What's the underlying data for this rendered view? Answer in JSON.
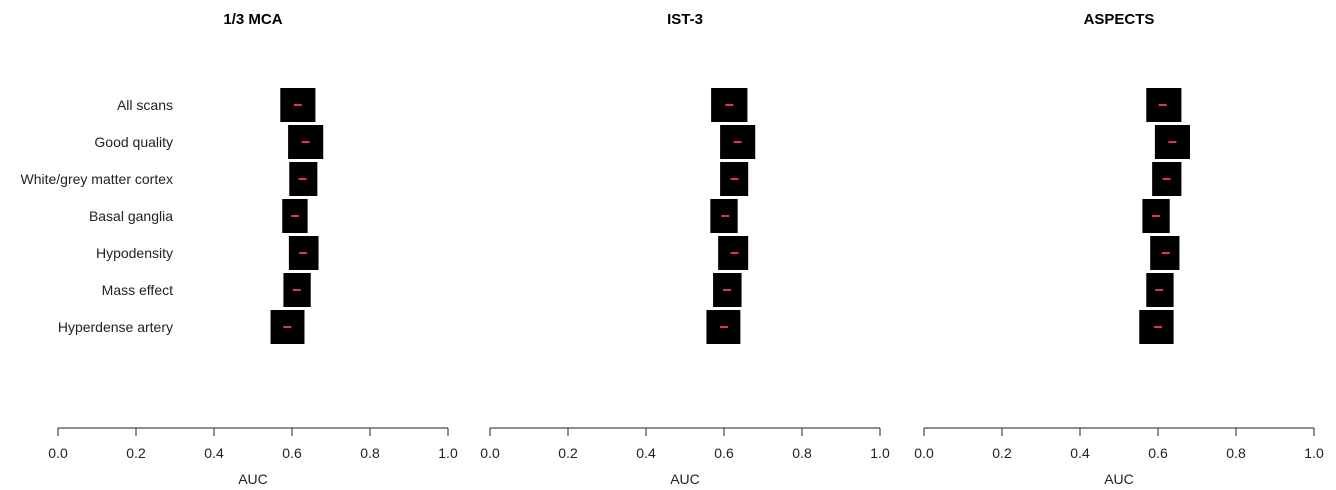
{
  "chart_data": [
    {
      "type": "forest",
      "title": "1/3 MCA",
      "xlabel": "AUC",
      "xlim": [
        0.0,
        1.0
      ],
      "xticks": [
        "0.0",
        "0.2",
        "0.4",
        "0.6",
        "0.8",
        "1.0"
      ],
      "categories": [
        "All scans",
        "Good quality",
        "White/grey matter cortex",
        "Basal ganglia",
        "Hypodensity",
        "Mass effect",
        "Hyperdense artery"
      ],
      "point": [
        0.615,
        0.635,
        0.627,
        0.608,
        0.628,
        0.612,
        0.588
      ],
      "lower": [
        0.57,
        0.59,
        0.593,
        0.575,
        0.592,
        0.578,
        0.545
      ],
      "upper": [
        0.66,
        0.68,
        0.665,
        0.64,
        0.668,
        0.648,
        0.632
      ],
      "box_color": "#000000",
      "point_color": "#e0306a"
    },
    {
      "type": "forest",
      "title": "IST-3",
      "xlabel": "AUC",
      "xlim": [
        0.0,
        1.0
      ],
      "xticks": [
        "0.0",
        "0.2",
        "0.4",
        "0.6",
        "0.8",
        "1.0"
      ],
      "categories": [
        "All scans",
        "Good quality",
        "White/grey matter cortex",
        "Basal ganglia",
        "Hypodensity",
        "Mass effect",
        "Hyperdense artery"
      ],
      "point": [
        0.614,
        0.635,
        0.627,
        0.603,
        0.627,
        0.608,
        0.6
      ],
      "lower": [
        0.567,
        0.59,
        0.59,
        0.565,
        0.585,
        0.572,
        0.555
      ],
      "upper": [
        0.66,
        0.68,
        0.662,
        0.635,
        0.662,
        0.645,
        0.642
      ],
      "box_color": "#000000",
      "point_color": "#e0306a"
    },
    {
      "type": "forest",
      "title": "ASPECTS",
      "xlabel": "AUC",
      "xlim": [
        0.0,
        1.0
      ],
      "xticks": [
        "0.0",
        "0.2",
        "0.4",
        "0.6",
        "0.8",
        "1.0"
      ],
      "categories": [
        "All scans",
        "Good quality",
        "White/grey matter cortex",
        "Basal ganglia",
        "Hypodensity",
        "Mass effect",
        "Hyperdense artery"
      ],
      "point": [
        0.612,
        0.637,
        0.622,
        0.595,
        0.62,
        0.603,
        0.6
      ],
      "lower": [
        0.57,
        0.592,
        0.585,
        0.56,
        0.58,
        0.57,
        0.552
      ],
      "upper": [
        0.66,
        0.682,
        0.66,
        0.63,
        0.655,
        0.64,
        0.64
      ],
      "box_color": "#000000",
      "point_color": "#e0306a"
    }
  ]
}
